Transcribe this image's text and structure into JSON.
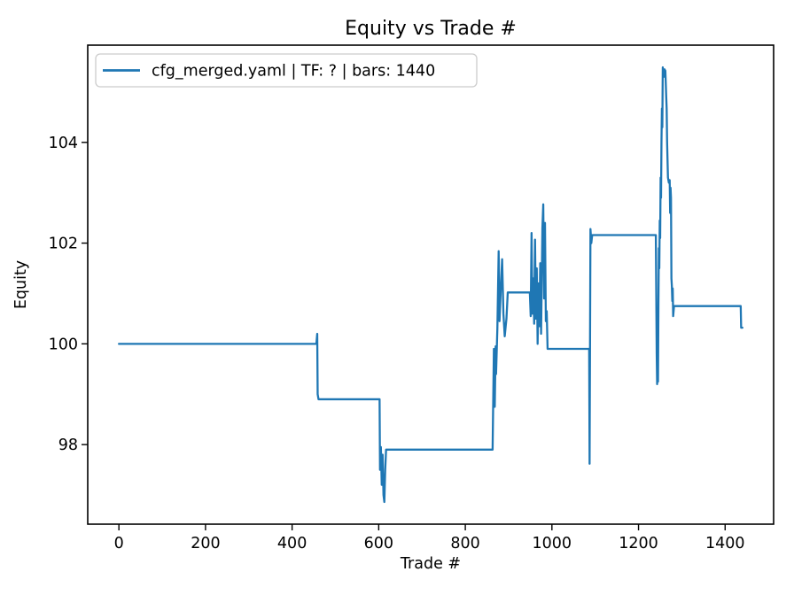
{
  "figure": {
    "background": "#ffffff",
    "text_color": "#000000"
  },
  "chart_data": {
    "type": "line",
    "title": "Equity vs Trade #",
    "xlabel": "Trade #",
    "ylabel": "Equity",
    "xlim": [
      -72,
      1512
    ],
    "ylim": [
      96.42,
      105.93
    ],
    "x_ticks": [
      0,
      200,
      400,
      600,
      800,
      1000,
      1200,
      1400
    ],
    "y_ticks": [
      98,
      100,
      102,
      104
    ],
    "grid": false,
    "legend_position": "upper left",
    "line_color": "#1f77b4",
    "series": [
      {
        "name": "cfg_merged.yaml | TF: ? | bars: 1440",
        "points": [
          [
            0,
            100.0
          ],
          [
            456,
            100.0
          ],
          [
            458,
            100.2
          ],
          [
            459,
            99.0
          ],
          [
            461,
            98.9
          ],
          [
            602,
            98.9
          ],
          [
            603,
            97.5
          ],
          [
            605,
            97.95
          ],
          [
            607,
            97.2
          ],
          [
            609,
            97.8
          ],
          [
            611,
            97.0
          ],
          [
            613,
            96.86
          ],
          [
            615,
            97.5
          ],
          [
            617,
            97.9
          ],
          [
            863,
            97.9
          ],
          [
            866,
            99.9
          ],
          [
            868,
            98.75
          ],
          [
            870,
            99.95
          ],
          [
            871,
            99.4
          ],
          [
            874,
            100.3
          ],
          [
            877,
            101.84
          ],
          [
            879,
            100.45
          ],
          [
            882,
            101.1
          ],
          [
            885,
            101.68
          ],
          [
            888,
            100.6
          ],
          [
            891,
            100.15
          ],
          [
            895,
            100.5
          ],
          [
            898,
            101.02
          ],
          [
            949,
            101.02
          ],
          [
            951,
            100.55
          ],
          [
            953,
            102.2
          ],
          [
            955,
            100.6
          ],
          [
            957,
            101.3
          ],
          [
            959,
            100.4
          ],
          [
            961,
            102.07
          ],
          [
            963,
            100.5
          ],
          [
            965,
            101.5
          ],
          [
            967,
            100.0
          ],
          [
            969,
            101.2
          ],
          [
            971,
            100.35
          ],
          [
            973,
            101.6
          ],
          [
            975,
            100.2
          ],
          [
            978,
            102.3
          ],
          [
            980,
            102.77
          ],
          [
            982,
            100.9
          ],
          [
            984,
            102.4
          ],
          [
            986,
            100.45
          ],
          [
            988,
            100.65
          ],
          [
            990,
            99.9
          ],
          [
            1086,
            99.9
          ],
          [
            1087,
            97.62
          ],
          [
            1089,
            102.28
          ],
          [
            1091,
            102.0
          ],
          [
            1093,
            102.16
          ],
          [
            1240,
            102.16
          ],
          [
            1242,
            99.8
          ],
          [
            1243,
            99.2
          ],
          [
            1244,
            99.5
          ],
          [
            1245,
            99.25
          ],
          [
            1246,
            100.8
          ],
          [
            1247,
            101.9
          ],
          [
            1248,
            101.5
          ],
          [
            1249,
            102.45
          ],
          [
            1250,
            102.1
          ],
          [
            1251,
            103.3
          ],
          [
            1252,
            102.9
          ],
          [
            1253,
            104.0
          ],
          [
            1254,
            104.67
          ],
          [
            1255,
            104.3
          ],
          [
            1256,
            105.49
          ],
          [
            1258,
            105.3
          ],
          [
            1260,
            105.45
          ],
          [
            1262,
            105.42
          ],
          [
            1264,
            104.9
          ],
          [
            1265,
            104.67
          ],
          [
            1266,
            104.0
          ],
          [
            1267,
            103.65
          ],
          [
            1268,
            103.3
          ],
          [
            1270,
            103.2
          ],
          [
            1272,
            103.25
          ],
          [
            1273,
            102.6
          ],
          [
            1274,
            103.1
          ],
          [
            1275,
            102.9
          ],
          [
            1276,
            101.3
          ],
          [
            1277,
            101.15
          ],
          [
            1278,
            100.85
          ],
          [
            1279,
            101.1
          ],
          [
            1280,
            100.55
          ],
          [
            1282,
            100.75
          ],
          [
            1436,
            100.75
          ],
          [
            1437,
            100.32
          ],
          [
            1440,
            100.32
          ]
        ]
      }
    ]
  }
}
